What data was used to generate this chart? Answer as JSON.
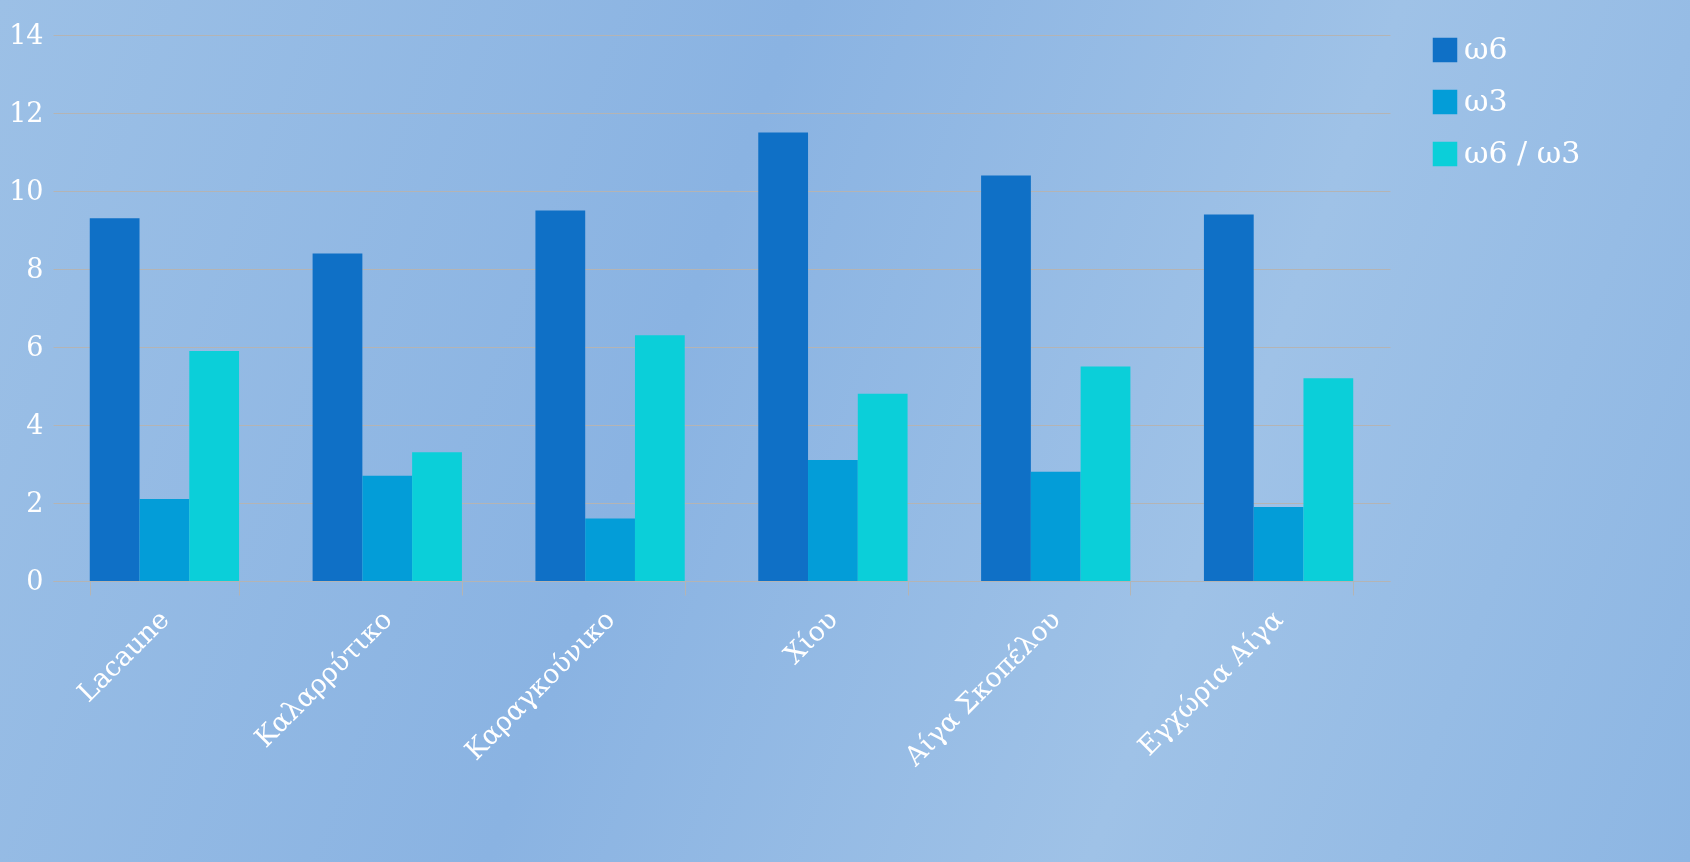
{
  "chart_data": {
    "type": "bar",
    "categories": [
      "Lacaune",
      "Καλαρρύτικο",
      "Καραγκούνικο",
      "Χίου",
      "Αίγα Σκοπέλου",
      "Εγχώρια Αίγα"
    ],
    "series": [
      {
        "name": "ω6",
        "color": "#0f70c6",
        "values": [
          9.3,
          8.4,
          9.5,
          11.5,
          10.4,
          9.4
        ]
      },
      {
        "name": "ω3",
        "color": "#039dd8",
        "values": [
          2.1,
          2.7,
          1.6,
          3.1,
          2.8,
          1.9
        ]
      },
      {
        "name": "ω6 / ω3",
        "color": "#0bcfd9",
        "values": [
          5.9,
          3.3,
          6.3,
          4.8,
          5.5,
          5.2
        ]
      }
    ],
    "ylim": [
      0,
      14
    ],
    "yticks": [
      0,
      2,
      4,
      6,
      8,
      10,
      12,
      14
    ],
    "grid": "y",
    "legend": "right"
  }
}
